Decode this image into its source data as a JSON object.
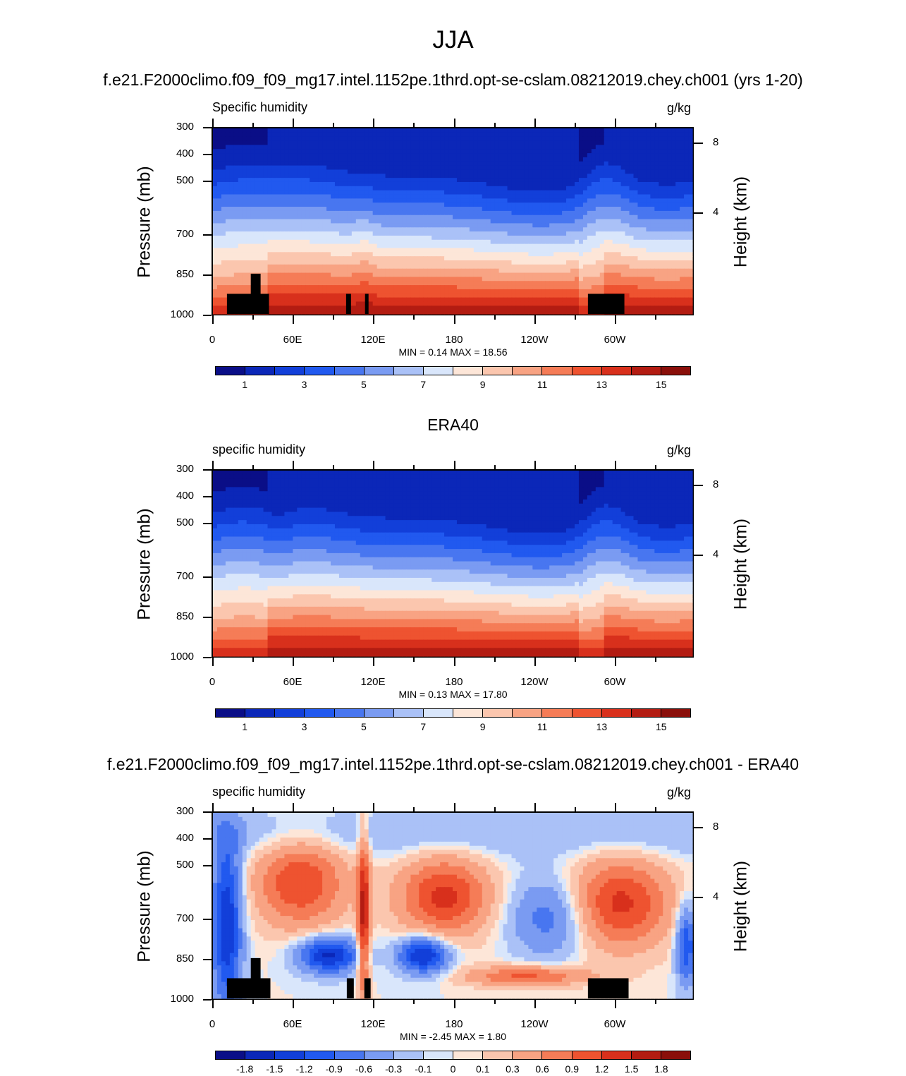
{
  "title": "JJA",
  "colors": {
    "main_scale": [
      "#0a0e87",
      "#0b27b8",
      "#123fd9",
      "#2159ef",
      "#4876f0",
      "#7a9bf2",
      "#aac1f7",
      "#d9e6fb",
      "#fde6d8",
      "#fbc6ae",
      "#f8a383",
      "#f57c57",
      "#ee5330",
      "#d8301c",
      "#b31c12",
      "#8a0f0a"
    ],
    "diff_scale": [
      "#0a0e87",
      "#0b27b8",
      "#123fd9",
      "#2159ef",
      "#4876f0",
      "#7a9bf2",
      "#aac1f7",
      "#d9e6fb",
      "#fde6d8",
      "#fbc6ae",
      "#f8a383",
      "#f57c57",
      "#ee5330",
      "#d8301c",
      "#b31c12",
      "#8a0f0a"
    ]
  },
  "panels": [
    {
      "title": "f.e21.F2000climo.f09_f09_mg17.intel.1152pe.1thrd.opt-se-cslam.08212019.chey.ch001 (yrs 1-20)",
      "left_label": "Specific humidity",
      "right_label": "g/kg",
      "ylabel": "Pressure (mb)",
      "y2label": "Height (km)",
      "minmax": "MIN =   0.14   MAX =  18.56",
      "colorbar_labels": [
        "1",
        "3",
        "5",
        "7",
        "9",
        "11",
        "13",
        "15"
      ]
    },
    {
      "title": "ERA40",
      "left_label": "specific humidity",
      "right_label": "g/kg",
      "ylabel": "Pressure (mb)",
      "y2label": "Height (km)",
      "minmax": "MIN =   0.13   MAX =  17.80",
      "colorbar_labels": [
        "1",
        "3",
        "5",
        "7",
        "9",
        "11",
        "13",
        "15"
      ]
    },
    {
      "title": "f.e21.F2000climo.f09_f09_mg17.intel.1152pe.1thrd.opt-se-cslam.08212019.chey.ch001 - ERA40",
      "left_label": "specific humidity",
      "right_label": "g/kg",
      "ylabel": "Pressure (mb)",
      "y2label": "Height (km)",
      "minmax": "MIN =  -2.45   MAX =  1.80",
      "colorbar_labels": [
        "-1.8",
        "-1.5",
        "-1.2",
        "-0.9",
        "-0.6",
        "-0.3",
        "-0.1",
        "0",
        "0.1",
        "0.3",
        "0.6",
        "0.9",
        "1.2",
        "1.5",
        "1.8"
      ]
    }
  ],
  "chart_data": [
    {
      "type": "heatmap",
      "title": "f.e21.F2000climo.f09_f09_mg17.intel.1152pe.1thrd.opt-se-cslam.08212019.chey.ch001 (yrs 1-20)",
      "variable": "Specific humidity",
      "units": "g/kg",
      "xticks": [
        "0",
        "60E",
        "120E",
        "180",
        "120W",
        "60W"
      ],
      "xlim": [
        0,
        360
      ],
      "yticks": [
        "300",
        "400",
        "500",
        "700",
        "850",
        "1000"
      ],
      "ylim": [
        1000,
        300
      ],
      "y2ticks": [
        "8",
        "4"
      ],
      "levels": [
        1,
        2,
        3,
        4,
        5,
        6,
        7,
        8,
        9,
        10,
        11,
        12,
        13,
        14,
        15
      ],
      "min": 0.14,
      "max": 18.56
    },
    {
      "type": "heatmap",
      "title": "ERA40",
      "variable": "specific humidity",
      "units": "g/kg",
      "xticks": [
        "0",
        "60E",
        "120E",
        "180",
        "120W",
        "60W"
      ],
      "xlim": [
        0,
        360
      ],
      "yticks": [
        "300",
        "400",
        "500",
        "700",
        "850",
        "1000"
      ],
      "ylim": [
        1000,
        300
      ],
      "y2ticks": [
        "8",
        "4"
      ],
      "levels": [
        1,
        2,
        3,
        4,
        5,
        6,
        7,
        8,
        9,
        10,
        11,
        12,
        13,
        14,
        15
      ],
      "min": 0.13,
      "max": 17.8
    },
    {
      "type": "heatmap",
      "title": "f.e21.F2000climo.f09_f09_mg17.intel.1152pe.1thrd.opt-se-cslam.08212019.chey.ch001 - ERA40",
      "variable": "specific humidity",
      "units": "g/kg",
      "xticks": [
        "0",
        "60E",
        "120E",
        "180",
        "120W",
        "60W"
      ],
      "xlim": [
        0,
        360
      ],
      "yticks": [
        "300",
        "400",
        "500",
        "700",
        "850",
        "1000"
      ],
      "ylim": [
        1000,
        300
      ],
      "y2ticks": [
        "8",
        "4"
      ],
      "levels": [
        -1.8,
        -1.5,
        -1.2,
        -0.9,
        -0.6,
        -0.3,
        -0.1,
        0,
        0.1,
        0.3,
        0.6,
        0.9,
        1.2,
        1.5,
        1.8
      ],
      "min": -2.45,
      "max": 1.8
    }
  ]
}
